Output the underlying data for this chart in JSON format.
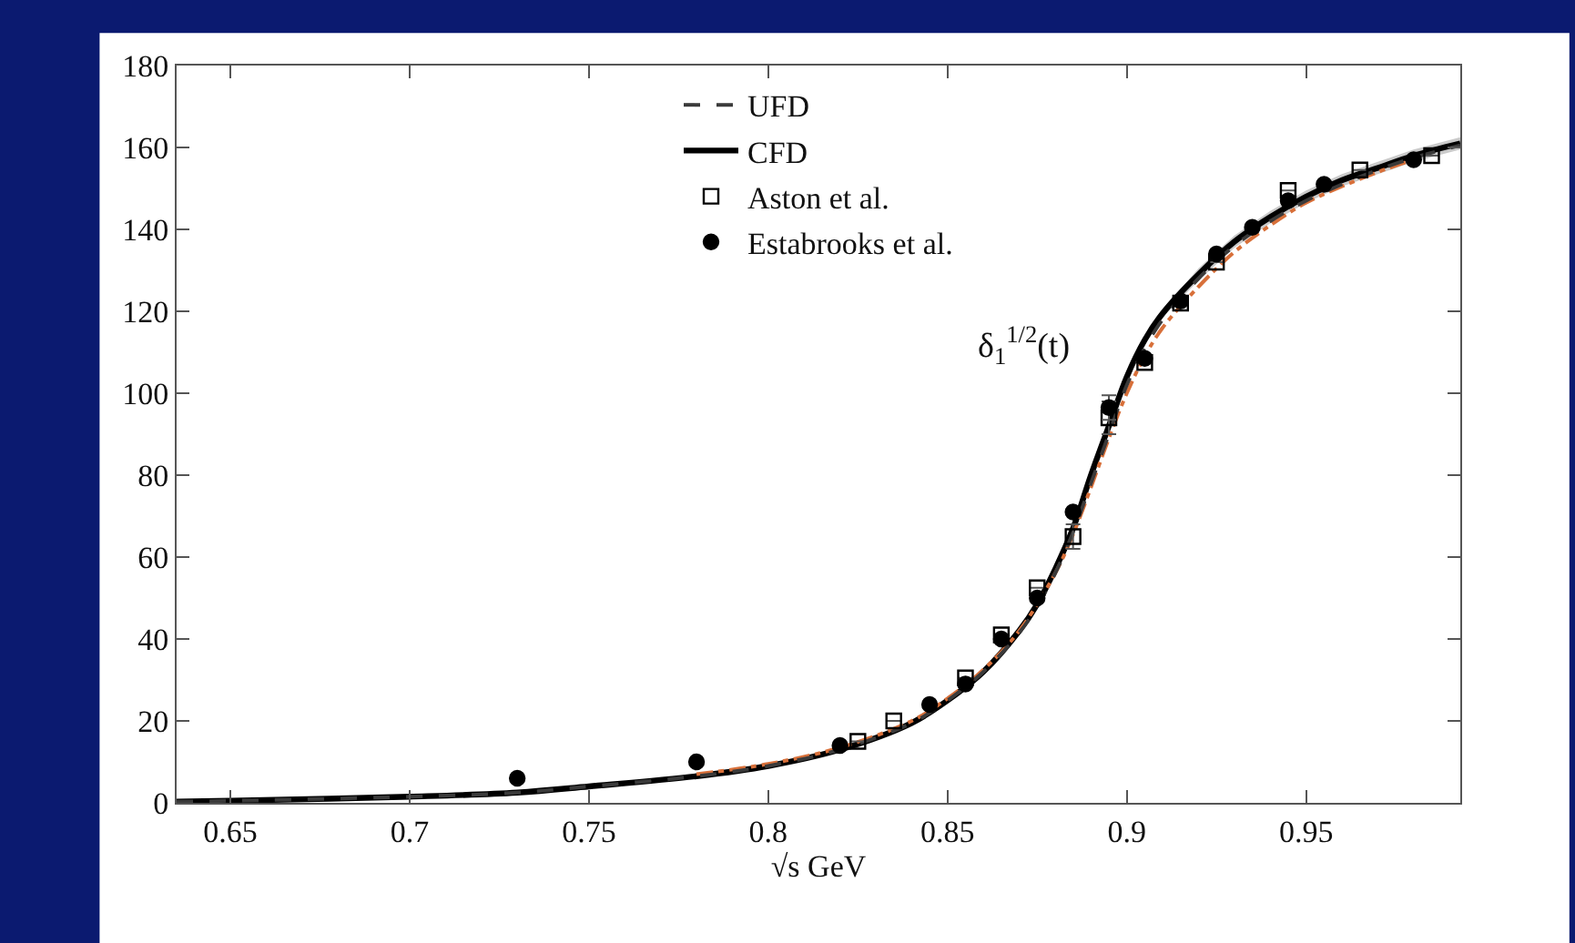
{
  "chart_data": {
    "type": "line",
    "xlabel": "√s GeV",
    "annotations": [
      "δ$_{1}$$^{1/2}$(t)"
    ],
    "xlim": [
      0.635,
      0.993
    ],
    "xticks": [
      0.65,
      0.7,
      0.75,
      0.8,
      0.85,
      0.9,
      0.95
    ],
    "ylim": [
      0,
      180
    ],
    "yticks": [
      0,
      20,
      40,
      60,
      80,
      100,
      120,
      140,
      160,
      180
    ],
    "legend": "top",
    "series": [
      {
        "name": "UFD",
        "line_style": "dashed",
        "marker": "none",
        "color": "#3a3a3a",
        "x": [
          0.635,
          0.65,
          0.7,
          0.73,
          0.75,
          0.78,
          0.8,
          0.82,
          0.84,
          0.85,
          0.86,
          0.87,
          0.875,
          0.88,
          0.885,
          0.89,
          0.895,
          0.9,
          0.905,
          0.91,
          0.92,
          0.93,
          0.94,
          0.95,
          0.96,
          0.97,
          0.98,
          0.993
        ],
        "values": [
          0.3,
          0.5,
          1.5,
          2.5,
          4,
          6.5,
          9,
          13,
          19.5,
          25,
          32,
          41.5,
          48,
          56,
          66,
          78,
          90,
          102,
          111,
          118,
          128,
          136,
          142,
          147,
          151,
          154.5,
          157.5,
          160.5
        ]
      },
      {
        "name": "CFD",
        "line_style": "solid",
        "marker": "none",
        "color": "#000000",
        "x": [
          0.635,
          0.65,
          0.7,
          0.73,
          0.75,
          0.78,
          0.8,
          0.82,
          0.84,
          0.85,
          0.86,
          0.87,
          0.875,
          0.88,
          0.885,
          0.89,
          0.895,
          0.9,
          0.905,
          0.91,
          0.92,
          0.93,
          0.94,
          0.95,
          0.96,
          0.97,
          0.98,
          0.993
        ],
        "values": [
          0.3,
          0.5,
          1.5,
          2.5,
          4,
          6.5,
          9,
          13,
          19.5,
          25,
          32,
          42,
          48.5,
          57,
          67,
          80,
          92,
          104,
          113,
          119.5,
          129,
          137,
          143,
          148,
          152,
          155,
          158,
          161
        ],
        "lower": [
          0.3,
          0.5,
          1.5,
          2.5,
          4,
          6.5,
          9,
          13,
          19.5,
          25,
          32,
          42,
          48.5,
          57,
          67,
          80,
          92,
          104,
          112,
          118.5,
          127.5,
          135.5,
          141.5,
          146.5,
          150.5,
          153.5,
          156.5,
          159.5
        ],
        "upper": [
          0.3,
          0.5,
          1.5,
          2.5,
          4,
          6.5,
          9,
          13,
          19.5,
          25,
          32,
          42,
          48.5,
          57,
          67,
          80,
          92,
          104,
          114,
          120.5,
          130.5,
          138.5,
          144.5,
          149.5,
          153.5,
          156.5,
          159.5,
          162.5
        ]
      },
      {
        "line_style": "dotted",
        "marker": "none",
        "color": "#d8703a",
        "x": [
          0.78,
          0.8,
          0.82,
          0.84,
          0.85,
          0.86,
          0.87,
          0.88,
          0.885,
          0.89,
          0.895,
          0.9,
          0.905,
          0.91,
          0.92,
          0.93,
          0.94,
          0.95,
          0.96,
          0.97,
          0.98
        ],
        "values": [
          7,
          9.5,
          13.5,
          20,
          25.5,
          32.5,
          42,
          56,
          65.5,
          77,
          89,
          100,
          109,
          116,
          126,
          134.5,
          141,
          146.5,
          150.5,
          154,
          157
        ]
      },
      {
        "name": "Aston et al.",
        "type": "scatter",
        "marker": "square",
        "color": "#000000",
        "x": [
          0.825,
          0.835,
          0.855,
          0.865,
          0.875,
          0.885,
          0.895,
          0.905,
          0.915,
          0.925,
          0.945,
          0.965,
          0.985
        ],
        "values": [
          15,
          20,
          30.5,
          41,
          52.5,
          65,
          94,
          107.5,
          122,
          132,
          149.5,
          154.5,
          158
        ],
        "errors": [
          null,
          null,
          null,
          null,
          null,
          3,
          4,
          null,
          null,
          null,
          null,
          null,
          null
        ]
      },
      {
        "name": "Estabrooks et al.",
        "type": "scatter",
        "marker": "circle",
        "color": "#000000",
        "x": [
          0.73,
          0.78,
          0.82,
          0.845,
          0.855,
          0.865,
          0.875,
          0.885,
          0.895,
          0.905,
          0.915,
          0.925,
          0.935,
          0.945,
          0.955,
          0.98
        ],
        "values": [
          6,
          10,
          14,
          24,
          29,
          40,
          50,
          71,
          96.5,
          108.5,
          122.5,
          134,
          140.5,
          147,
          151,
          157
        ],
        "errors": [
          null,
          null,
          null,
          null,
          null,
          null,
          null,
          null,
          3,
          null,
          null,
          null,
          null,
          null,
          null,
          null
        ]
      }
    ]
  }
}
